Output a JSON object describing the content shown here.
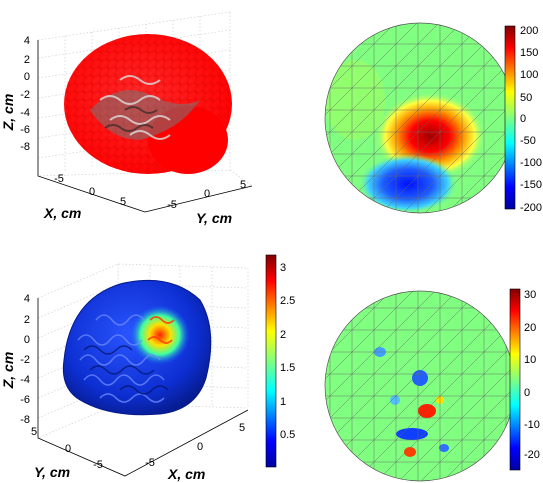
{
  "top_left_brain": {
    "x_label": "X, cm",
    "y_label": "Y, cm",
    "z_label": "Z, cm",
    "z_ticks": [
      "4",
      "2",
      "0",
      "-2",
      "-4",
      "-6",
      "-8"
    ],
    "x_ticks": [
      "-5",
      "0",
      "5"
    ],
    "y_ticks": [
      "5",
      "0",
      "-5"
    ]
  },
  "top_right_map": {
    "colorbar_ticks": [
      "200",
      "150",
      "100",
      "50",
      "0",
      "-50",
      "-100",
      "-150",
      "-200"
    ]
  },
  "bottom_left_brain": {
    "x_label": "X, cm",
    "y_label": "Y, cm",
    "z_label": "Z, cm",
    "z_ticks": [
      "4",
      "2",
      "0",
      "-2",
      "-4",
      "-6",
      "-8"
    ],
    "x_ticks": [
      "-5",
      "0",
      "5"
    ],
    "y_ticks": [
      "5",
      "0",
      "-5"
    ],
    "colorbar_ticks": [
      "3",
      "2.5",
      "2",
      "1.5",
      "1",
      "0.5"
    ]
  },
  "bottom_right_map": {
    "colorbar_ticks": [
      "30",
      "20",
      "10",
      "0",
      "-10",
      "-20"
    ]
  },
  "colors": {
    "jet_red": "#ff0000",
    "jet_blue": "#0000ff",
    "jet_green": "#80ff80",
    "brain_blue": "#0c2fd6"
  }
}
